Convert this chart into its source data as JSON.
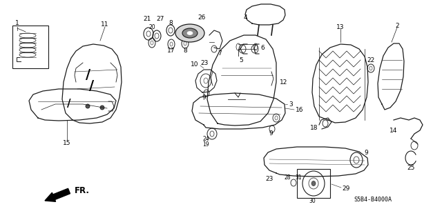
{
  "bg_color": "#ffffff",
  "fig_width": 6.4,
  "fig_height": 3.19,
  "dpi": 100,
  "diagram_code": "S5B4-B4000A",
  "line_color": "#1a1a1a",
  "text_color": "#000000",
  "fs": 6.5,
  "fs_small": 5.5,
  "fs_code": 6.0
}
